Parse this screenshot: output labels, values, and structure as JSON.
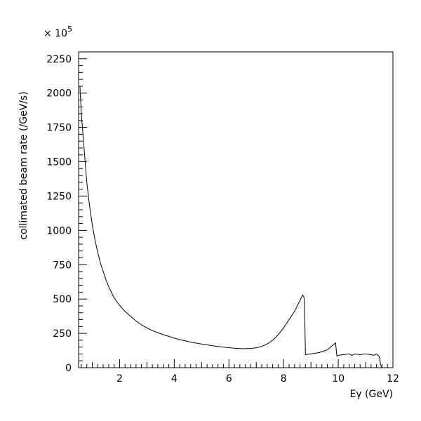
{
  "chart_data": {
    "type": "line",
    "title": "",
    "xlabel": "Eγ (GeV)",
    "ylabel": "collimated beam rate (/GeV/s)",
    "y_multiplier": "× 10",
    "y_multiplier_exp": "5",
    "xlim": [
      0.5,
      12
    ],
    "ylim": [
      0,
      2300
    ],
    "x_major_ticks": [
      2,
      4,
      6,
      8,
      10,
      12
    ],
    "y_major_ticks": [
      0,
      250,
      500,
      750,
      1000,
      1250,
      1500,
      1750,
      2000,
      2250
    ],
    "x_tick_labels": [
      "2",
      "4",
      "6",
      "8",
      "10",
      "12"
    ],
    "y_tick_labels": [
      "0",
      "250",
      "500",
      "750",
      "1000",
      "1250",
      "1500",
      "1750",
      "2000",
      "2250"
    ],
    "grid": false,
    "legend": "none",
    "series": [
      {
        "x": [
          0.55,
          0.6,
          0.7,
          0.8,
          0.9,
          1.0,
          1.1,
          1.2,
          1.3,
          1.4,
          1.5,
          1.6,
          1.7,
          1.8,
          1.9,
          2.0,
          2.2,
          2.4,
          2.6,
          2.8,
          3.0,
          3.2,
          3.4,
          3.6,
          3.8,
          4.0,
          4.3,
          4.6,
          5.0,
          5.4,
          5.8,
          6.2,
          6.5,
          6.8,
          7.0,
          7.2,
          7.4,
          7.6,
          7.8,
          8.0,
          8.2,
          8.4,
          8.6,
          8.7,
          8.75,
          8.78,
          8.8,
          9.0,
          9.3,
          9.6,
          9.9,
          9.95,
          10.0,
          10.2,
          10.4,
          10.5,
          10.6,
          10.8,
          11.0,
          11.2,
          11.3,
          11.4,
          11.5,
          11.55,
          11.6
        ],
        "y": [
          2050,
          1850,
          1600,
          1350,
          1180,
          1040,
          930,
          840,
          760,
          700,
          640,
          590,
          550,
          510,
          480,
          455,
          410,
          375,
          340,
          312,
          290,
          270,
          255,
          240,
          228,
          215,
          200,
          186,
          172,
          160,
          150,
          142,
          138,
          140,
          145,
          155,
          172,
          200,
          240,
          290,
          350,
          410,
          490,
          530,
          510,
          300,
          95,
          100,
          110,
          130,
          180,
          85,
          90,
          95,
          100,
          90,
          100,
          95,
          100,
          95,
          90,
          100,
          80,
          20,
          0
        ]
      }
    ]
  }
}
